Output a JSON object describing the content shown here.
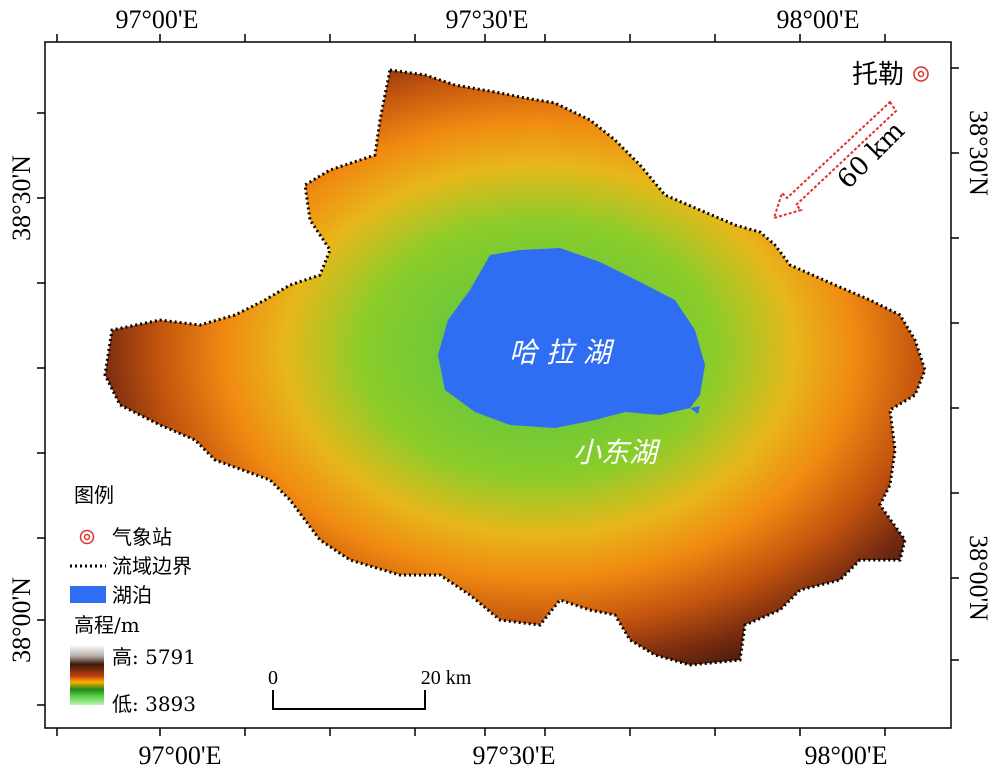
{
  "map": {
    "coords": {
      "top": [
        "97°00'E",
        "97°30'E",
        "98°00'E"
      ],
      "bottom": [
        "97°00'E",
        "97°30'E",
        "98°00'E"
      ],
      "left": [
        "38°30'N",
        "38°00'N"
      ],
      "right": [
        "38°30'N",
        "38°00'N"
      ]
    },
    "labels": {
      "lake_main": "哈 拉 湖",
      "lake_small": "小东湖",
      "station": "托勒",
      "distance": "60 km"
    },
    "legend": {
      "title": "图例",
      "station": "气象站",
      "boundary": "流域边界",
      "lake": "湖泊",
      "elevation_title": "高程/m",
      "high": "高: 5791",
      "low": "低: 3893"
    },
    "scale": {
      "zero": "0",
      "end": "20 km"
    },
    "colors": {
      "lake": "#2f6ef2",
      "station": "#e03030",
      "elev_low": "#a8f0a0",
      "elev_mid": "#ff9a10",
      "elev_high": "#6b2a10",
      "elev_peak": "#ffffff"
    }
  }
}
